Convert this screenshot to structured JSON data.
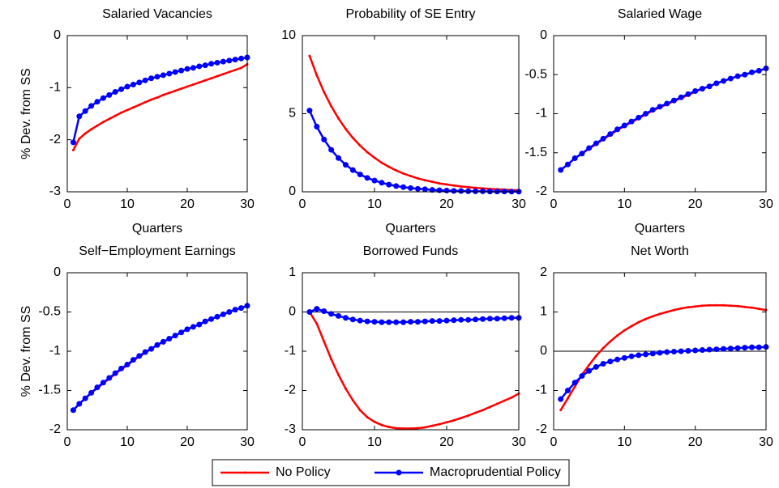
{
  "chart_data": [
    {
      "type": "line",
      "title": "Salaried Vacancies",
      "xlabel": "Quarters",
      "ylabel": "% Dev. from SS",
      "x": [
        1,
        2,
        3,
        4,
        5,
        6,
        7,
        8,
        9,
        10,
        11,
        12,
        13,
        14,
        15,
        16,
        17,
        18,
        19,
        20,
        21,
        22,
        23,
        24,
        25,
        26,
        27,
        28,
        29,
        30
      ],
      "xlim": [
        0,
        30
      ],
      "xticks": [
        0,
        10,
        20,
        30
      ],
      "ylim": [
        -3,
        0
      ],
      "yticks": [
        -3,
        -2,
        -1,
        0
      ],
      "series": [
        {
          "name": "No Policy",
          "color": "#ff0000",
          "values": [
            -2.2,
            -1.98,
            -1.88,
            -1.8,
            -1.73,
            -1.66,
            -1.6,
            -1.54,
            -1.48,
            -1.43,
            -1.38,
            -1.33,
            -1.28,
            -1.23,
            -1.19,
            -1.14,
            -1.1,
            -1.06,
            -1.02,
            -0.98,
            -0.94,
            -0.9,
            -0.86,
            -0.82,
            -0.78,
            -0.74,
            -0.7,
            -0.66,
            -0.62,
            -0.55
          ]
        },
        {
          "name": "Macroprudential Policy",
          "color": "#0000ff",
          "values": [
            -2.05,
            -1.55,
            -1.45,
            -1.35,
            -1.27,
            -1.2,
            -1.14,
            -1.08,
            -1.03,
            -0.98,
            -0.94,
            -0.9,
            -0.86,
            -0.82,
            -0.79,
            -0.76,
            -0.73,
            -0.7,
            -0.67,
            -0.64,
            -0.62,
            -0.59,
            -0.57,
            -0.54,
            -0.52,
            -0.5,
            -0.48,
            -0.46,
            -0.44,
            -0.42
          ]
        }
      ]
    },
    {
      "type": "line",
      "title": "Probability of SE Entry",
      "xlabel": "Quarters",
      "x": [
        1,
        2,
        3,
        4,
        5,
        6,
        7,
        8,
        9,
        10,
        11,
        12,
        13,
        14,
        15,
        16,
        17,
        18,
        19,
        20,
        21,
        22,
        23,
        24,
        25,
        26,
        27,
        28,
        29,
        30
      ],
      "xlim": [
        0,
        30
      ],
      "xticks": [
        0,
        10,
        20,
        30
      ],
      "ylim": [
        0,
        10
      ],
      "yticks": [
        0,
        5,
        10
      ],
      "series": [
        {
          "name": "No Policy",
          "color": "#ff0000",
          "values": [
            8.7,
            7.46,
            6.39,
            5.48,
            4.7,
            4.03,
            3.45,
            2.96,
            2.54,
            2.18,
            1.86,
            1.6,
            1.37,
            1.17,
            1.01,
            0.86,
            0.74,
            0.64,
            0.54,
            0.47,
            0.4,
            0.34,
            0.3,
            0.25,
            0.22,
            0.18,
            0.16,
            0.14,
            0.11,
            0.1
          ]
        },
        {
          "name": "Macroprudential Policy",
          "color": "#0000ff",
          "values": [
            5.2,
            4.17,
            3.35,
            2.69,
            2.16,
            1.73,
            1.39,
            1.11,
            0.89,
            0.72,
            0.58,
            0.46,
            0.37,
            0.3,
            0.24,
            0.19,
            0.16,
            0.12,
            0.1,
            0.08,
            0.06,
            0.05,
            0.04,
            0.03,
            0.03,
            0.02,
            0.02,
            0.02,
            0.01,
            0.01
          ]
        }
      ]
    },
    {
      "type": "line",
      "title": "Salaried Wage",
      "xlabel": "Quarters",
      "x": [
        1,
        2,
        3,
        4,
        5,
        6,
        7,
        8,
        9,
        10,
        11,
        12,
        13,
        14,
        15,
        16,
        17,
        18,
        19,
        20,
        21,
        22,
        23,
        24,
        25,
        26,
        27,
        28,
        29,
        30
      ],
      "xlim": [
        0,
        30
      ],
      "xticks": [
        0,
        10,
        20,
        30
      ],
      "ylim": [
        -2,
        0
      ],
      "yticks": [
        -2,
        -1.5,
        -1,
        -0.5,
        0
      ],
      "series": [
        {
          "name": "No Policy",
          "color": "#ff0000",
          "values": [
            -1.72,
            -1.65,
            -1.57,
            -1.51,
            -1.45,
            -1.39,
            -1.33,
            -1.27,
            -1.21,
            -1.16,
            -1.11,
            -1.06,
            -1.01,
            -0.96,
            -0.92,
            -0.88,
            -0.84,
            -0.8,
            -0.76,
            -0.72,
            -0.68,
            -0.65,
            -0.61,
            -0.58,
            -0.55,
            -0.52,
            -0.5,
            -0.47,
            -0.45,
            -0.42
          ]
        },
        {
          "name": "Macroprudential Policy",
          "color": "#0000ff",
          "values": [
            -1.72,
            -1.65,
            -1.57,
            -1.51,
            -1.44,
            -1.38,
            -1.32,
            -1.26,
            -1.2,
            -1.15,
            -1.1,
            -1.05,
            -1.0,
            -0.95,
            -0.91,
            -0.87,
            -0.83,
            -0.79,
            -0.75,
            -0.71,
            -0.68,
            -0.65,
            -0.61,
            -0.58,
            -0.55,
            -0.52,
            -0.5,
            -0.47,
            -0.45,
            -0.42
          ]
        }
      ]
    },
    {
      "type": "line",
      "title": "Self−Employment Earnings",
      "ylabel": "% Dev. from SS",
      "x": [
        1,
        2,
        3,
        4,
        5,
        6,
        7,
        8,
        9,
        10,
        11,
        12,
        13,
        14,
        15,
        16,
        17,
        18,
        19,
        20,
        21,
        22,
        23,
        24,
        25,
        26,
        27,
        28,
        29,
        30
      ],
      "xlim": [
        0,
        30
      ],
      "xticks": [
        0,
        10,
        20,
        30
      ],
      "ylim": [
        -2,
        0
      ],
      "yticks": [
        -2,
        -1.5,
        -1,
        -0.5,
        0
      ],
      "series": [
        {
          "name": "No Policy",
          "color": "#ff0000",
          "values": [
            -1.75,
            -1.67,
            -1.6,
            -1.53,
            -1.47,
            -1.41,
            -1.35,
            -1.29,
            -1.23,
            -1.18,
            -1.12,
            -1.07,
            -1.02,
            -0.97,
            -0.92,
            -0.88,
            -0.84,
            -0.8,
            -0.76,
            -0.72,
            -0.69,
            -0.66,
            -0.62,
            -0.59,
            -0.56,
            -0.53,
            -0.5,
            -0.47,
            -0.45,
            -0.42
          ]
        },
        {
          "name": "Macroprudential Policy",
          "color": "#0000ff",
          "values": [
            -1.75,
            -1.67,
            -1.6,
            -1.53,
            -1.46,
            -1.4,
            -1.34,
            -1.28,
            -1.22,
            -1.17,
            -1.11,
            -1.06,
            -1.01,
            -0.97,
            -0.92,
            -0.88,
            -0.84,
            -0.8,
            -0.76,
            -0.72,
            -0.69,
            -0.66,
            -0.62,
            -0.59,
            -0.56,
            -0.53,
            -0.5,
            -0.47,
            -0.45,
            -0.42
          ]
        }
      ]
    },
    {
      "type": "line",
      "title": "Borrowed Funds",
      "zero_line": true,
      "x": [
        1,
        2,
        3,
        4,
        5,
        6,
        7,
        8,
        9,
        10,
        11,
        12,
        13,
        14,
        15,
        16,
        17,
        18,
        19,
        20,
        21,
        22,
        23,
        24,
        25,
        26,
        27,
        28,
        29,
        30
      ],
      "xlim": [
        0,
        30
      ],
      "xticks": [
        0,
        10,
        20,
        30
      ],
      "ylim": [
        -3,
        1
      ],
      "yticks": [
        -3,
        -2,
        -1,
        0,
        1
      ],
      "series": [
        {
          "name": "No Policy",
          "color": "#ff0000",
          "values": [
            0,
            -0.3,
            -0.75,
            -1.2,
            -1.6,
            -1.95,
            -2.25,
            -2.5,
            -2.68,
            -2.8,
            -2.88,
            -2.93,
            -2.96,
            -2.97,
            -2.97,
            -2.96,
            -2.94,
            -2.9,
            -2.86,
            -2.81,
            -2.76,
            -2.7,
            -2.64,
            -2.57,
            -2.5,
            -2.42,
            -2.34,
            -2.26,
            -2.18,
            -2.08
          ]
        },
        {
          "name": "Macroprudential Policy",
          "color": "#0000ff",
          "values": [
            0,
            0.08,
            0.02,
            -0.05,
            -0.1,
            -0.15,
            -0.19,
            -0.22,
            -0.24,
            -0.25,
            -0.26,
            -0.26,
            -0.26,
            -0.26,
            -0.25,
            -0.25,
            -0.24,
            -0.23,
            -0.23,
            -0.22,
            -0.21,
            -0.2,
            -0.2,
            -0.19,
            -0.18,
            -0.17,
            -0.17,
            -0.16,
            -0.15,
            -0.15
          ]
        }
      ]
    },
    {
      "type": "line",
      "title": "Net Worth",
      "zero_line": true,
      "x": [
        1,
        2,
        3,
        4,
        5,
        6,
        7,
        8,
        9,
        10,
        11,
        12,
        13,
        14,
        15,
        16,
        17,
        18,
        19,
        20,
        21,
        22,
        23,
        24,
        25,
        26,
        27,
        28,
        29,
        30
      ],
      "xlim": [
        0,
        30
      ],
      "xticks": [
        0,
        10,
        20,
        30
      ],
      "ylim": [
        -2,
        2
      ],
      "yticks": [
        -2,
        -1,
        0,
        1,
        2
      ],
      "series": [
        {
          "name": "No Policy",
          "color": "#ff0000",
          "values": [
            -1.5,
            -1.2,
            -0.9,
            -0.6,
            -0.35,
            -0.12,
            0.08,
            0.25,
            0.4,
            0.53,
            0.64,
            0.74,
            0.82,
            0.89,
            0.95,
            1.0,
            1.05,
            1.09,
            1.12,
            1.14,
            1.16,
            1.17,
            1.17,
            1.17,
            1.16,
            1.15,
            1.13,
            1.11,
            1.08,
            1.05
          ]
        },
        {
          "name": "Macroprudential Policy",
          "color": "#0000ff",
          "values": [
            -1.22,
            -1.0,
            -0.8,
            -0.63,
            -0.5,
            -0.4,
            -0.32,
            -0.26,
            -0.21,
            -0.17,
            -0.13,
            -0.1,
            -0.08,
            -0.06,
            -0.04,
            -0.02,
            -0.01,
            0,
            0.01,
            0.02,
            0.03,
            0.04,
            0.05,
            0.06,
            0.07,
            0.08,
            0.09,
            0.1,
            0.1,
            0.11
          ]
        }
      ]
    }
  ]
}
